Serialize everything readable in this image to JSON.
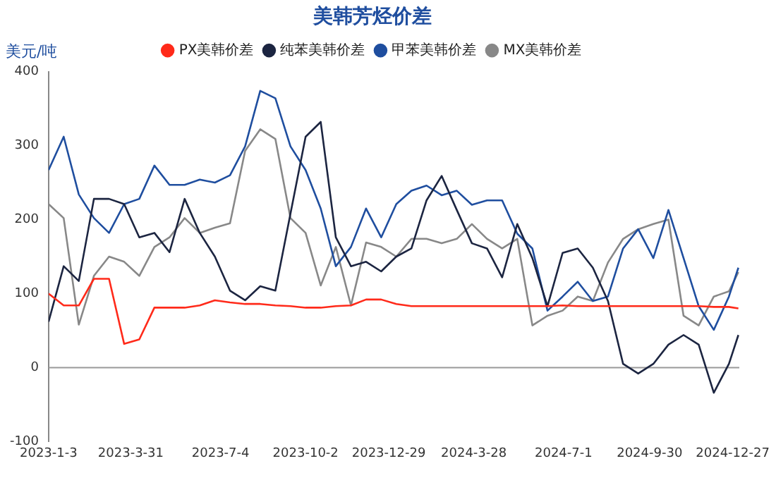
{
  "chart_data": {
    "type": "line",
    "title": "美韩芳烃价差",
    "ylabel": "美元/吨",
    "x": [
      "2023-01-03",
      "2023-01-19",
      "2023-02-04",
      "2023-02-20",
      "2023-03-08",
      "2023-03-24",
      "2023-04-09",
      "2023-04-25",
      "2023-05-11",
      "2023-05-27",
      "2023-06-12",
      "2023-06-28",
      "2023-07-14",
      "2023-07-30",
      "2023-08-15",
      "2023-08-31",
      "2023-09-16",
      "2023-10-02",
      "2023-10-18",
      "2023-11-03",
      "2023-11-19",
      "2023-12-05",
      "2023-12-21",
      "2024-01-06",
      "2024-01-22",
      "2024-02-07",
      "2024-02-23",
      "2024-03-10",
      "2024-03-26",
      "2024-04-11",
      "2024-04-27",
      "2024-05-13",
      "2024-05-29",
      "2024-06-14",
      "2024-06-30",
      "2024-07-16",
      "2024-08-01",
      "2024-08-17",
      "2024-09-02",
      "2024-09-18",
      "2024-10-04",
      "2024-10-20",
      "2024-11-05",
      "2024-11-21",
      "2024-12-07",
      "2024-12-23",
      "2025-01-02"
    ],
    "series": [
      {
        "name": "PX美韩价差",
        "color": "#ff2a1a",
        "values": [
          100,
          84,
          84,
          120,
          120,
          32,
          38,
          81,
          81,
          81,
          84,
          91,
          88,
          86,
          86,
          84,
          83,
          81,
          81,
          83,
          84,
          92,
          92,
          86,
          83,
          83,
          83,
          83,
          83,
          83,
          83,
          83,
          83,
          83,
          84,
          83,
          83,
          83,
          83,
          83,
          83,
          83,
          83,
          83,
          82,
          82,
          80
        ]
      },
      {
        "name": "纯苯美韩价差",
        "color": "#1c2541",
        "values": [
          62,
          137,
          117,
          228,
          228,
          221,
          176,
          182,
          156,
          228,
          182,
          150,
          104,
          91,
          110,
          104,
          208,
          312,
          332,
          176,
          137,
          143,
          130,
          150,
          161,
          226,
          259,
          213,
          168,
          161,
          122,
          194,
          148,
          83,
          155,
          161,
          135,
          90,
          5,
          -8,
          5,
          31,
          44,
          31,
          -34,
          5,
          44
        ]
      },
      {
        "name": "甲苯美韩价差",
        "color": "#1f4e9f",
        "values": [
          267,
          312,
          234,
          202,
          182,
          221,
          228,
          273,
          247,
          247,
          254,
          250,
          260,
          299,
          374,
          364,
          299,
          267,
          215,
          137,
          163,
          215,
          176,
          221,
          239,
          246,
          233,
          239,
          220,
          226,
          226,
          181,
          161,
          77,
          96,
          116,
          90,
          96,
          161,
          187,
          148,
          213,
          148,
          83,
          51,
          96,
          135
        ]
      },
      {
        "name": "MX美韩价差",
        "color": "#888888",
        "values": [
          221,
          202,
          58,
          124,
          150,
          143,
          124,
          163,
          176,
          202,
          182,
          189,
          195,
          293,
          322,
          309,
          202,
          182,
          111,
          163,
          84,
          169,
          163,
          150,
          174,
          174,
          168,
          174,
          194,
          174,
          161,
          174,
          57,
          70,
          77,
          96,
          90,
          142,
          174,
          187,
          194,
          200,
          70,
          57,
          96,
          103,
          129
        ]
      }
    ],
    "xlim": [
      "2023-01-03",
      "2025-01-03"
    ],
    "xticks": [
      {
        "value": "2023-01-03",
        "label": "2023-1-3"
      },
      {
        "value": "2023-03-31",
        "label": "2023-3-31"
      },
      {
        "value": "2023-07-04",
        "label": "2023-7-4"
      },
      {
        "value": "2023-10-02",
        "label": "2023-10-2"
      },
      {
        "value": "2023-12-29",
        "label": "2023-12-29"
      },
      {
        "value": "2024-03-28",
        "label": "2024-3-28"
      },
      {
        "value": "2024-07-01",
        "label": "2024-7-1"
      },
      {
        "value": "2024-09-30",
        "label": "2024-9-30"
      },
      {
        "value": "2024-12-27",
        "label": "2024-12-27"
      }
    ],
    "ylim": [
      -100,
      400
    ],
    "yticks": [
      -100,
      0,
      100,
      200,
      300,
      400
    ],
    "ref_lines": [
      {
        "axis": "y",
        "value": 0,
        "color": "#999999"
      }
    ],
    "grid": false,
    "legend": "top",
    "marker": "none",
    "line_style": "solid"
  }
}
